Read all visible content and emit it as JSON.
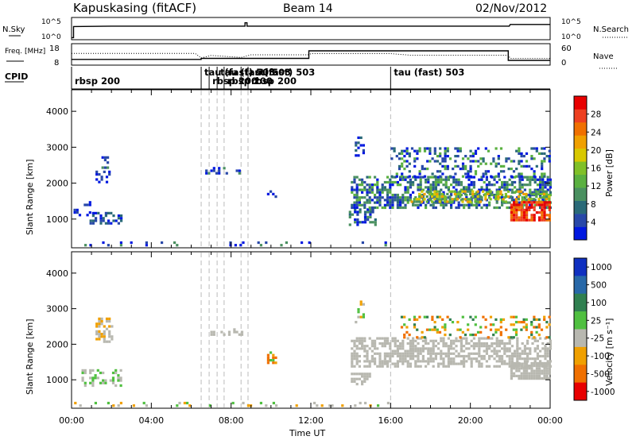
{
  "header": {
    "station": "Kapuskasing (fitACF)",
    "beam": "Beam 14",
    "date": "02/Nov/2012"
  },
  "colors": {
    "scatter_blue": "#2040c0",
    "ground_gray": "#c8c8c0",
    "mark_black": "#000000"
  },
  "chart_data": [
    {
      "type": "line",
      "name_label": "N.Sky",
      "right_label": "N.Search",
      "yticks": [
        "10^5",
        "10^0"
      ],
      "right_yticks": [
        "10^5",
        "10^0"
      ],
      "series": [
        {
          "name": "N.Sky",
          "style": "solid",
          "x": [
            0.0,
            0.1,
            0.1,
            2.0,
            6.0,
            8.7,
            8.7,
            8.8,
            8.8,
            12.0,
            16.0,
            21.95,
            22.0,
            24.0
          ],
          "y": [
            0.3,
            0.3,
            3.0,
            3.1,
            3.1,
            3.1,
            3.9,
            3.9,
            3.1,
            3.1,
            3.1,
            3.1,
            3.5,
            3.5
          ]
        }
      ],
      "ylim": [
        0,
        5
      ]
    },
    {
      "type": "line",
      "name_label": "Freq. [MHz]",
      "right_label": "Nave",
      "yticks": [
        "18",
        "8"
      ],
      "right_yticks": [
        "60",
        "0"
      ],
      "series": [
        {
          "name": "Freq.",
          "style": "solid",
          "x": [
            0,
            6.5,
            6.5,
            11.9,
            11.9,
            21.9,
            21.9,
            24
          ],
          "y": [
            10.5,
            10.5,
            11.0,
            11.0,
            14.8,
            14.8,
            10.0,
            10.0
          ]
        },
        {
          "name": "Nave",
          "style": "dotted",
          "x": [
            0,
            6.2,
            6.5,
            7.0,
            8.5,
            9.0,
            11.9,
            12.0,
            16.0,
            17.0,
            21.9,
            22.0,
            24
          ],
          "y": [
            13.5,
            13.5,
            11.2,
            12.5,
            11.5,
            12.8,
            12.8,
            13.4,
            13.4,
            12.6,
            12.6,
            11.0,
            11.0
          ]
        }
      ],
      "ylim": [
        8,
        18
      ]
    },
    {
      "type": "heatmap",
      "label": "CPID",
      "events": [
        {
          "t": 0.0,
          "label": "rbsp 200",
          "row": 1
        },
        {
          "t": 6.5,
          "label": "tau (fast) 503",
          "row": 0
        },
        {
          "t": 6.9,
          "label": "rbsp 200",
          "row": 1
        },
        {
          "t": 7.3,
          "label": "tau (fast) 503",
          "row": 0
        },
        {
          "t": 7.65,
          "label": "rbsp 200",
          "row": 1
        },
        {
          "t": 8.5,
          "label": "tau (fast) 503",
          "row": 0
        },
        {
          "t": 8.85,
          "label": "rbsp 200",
          "row": 1
        },
        {
          "t": 16.0,
          "label": "tau (fast) 503",
          "row": 0
        }
      ]
    },
    {
      "type": "heatmap",
      "quantity": "Power",
      "ylabel": "Slant Range [km]",
      "ylim": [
        200,
        4600
      ],
      "yticks": [
        1000,
        2000,
        3000,
        4000
      ],
      "colorbar_label": "Power [dB]",
      "colorbar_ticks": [
        "4",
        "8",
        "12",
        "16",
        "20",
        "24",
        "28"
      ],
      "colorbar_colors": [
        "#0018e0",
        "#2848a8",
        "#2a6a78",
        "#4a9060",
        "#5ab040",
        "#80c028",
        "#d8c800",
        "#f0a000",
        "#f07000",
        "#ee4020",
        "#e80000"
      ],
      "blobs": [
        {
          "t0": 1.2,
          "t1": 1.9,
          "r0": 2050,
          "r1": 2350,
          "density": 0.55,
          "levels": [
            0,
            1
          ]
        },
        {
          "t0": 1.5,
          "t1": 2.0,
          "r0": 2450,
          "r1": 2750,
          "density": 0.4,
          "levels": [
            0,
            1,
            3
          ]
        },
        {
          "t0": 0.9,
          "t1": 2.5,
          "r0": 850,
          "r1": 1200,
          "density": 0.45,
          "levels": [
            0,
            1,
            2
          ]
        },
        {
          "t0": 0.1,
          "t1": 1.0,
          "r0": 1100,
          "r1": 1500,
          "density": 0.2,
          "levels": [
            0,
            1
          ]
        },
        {
          "t0": 6.7,
          "t1": 8.6,
          "r0": 2250,
          "r1": 2450,
          "density": 0.45,
          "levels": [
            0,
            1,
            3
          ]
        },
        {
          "t0": 9.8,
          "t1": 10.2,
          "r0": 1600,
          "r1": 1800,
          "density": 0.55,
          "levels": [
            0,
            1
          ]
        },
        {
          "t0": 14.2,
          "t1": 14.6,
          "r0": 2700,
          "r1": 3300,
          "density": 0.35,
          "levels": [
            0,
            1,
            2
          ]
        },
        {
          "t0": 13.9,
          "t1": 15.2,
          "r0": 850,
          "r1": 1300,
          "density": 0.5,
          "levels": [
            0,
            1,
            2,
            3
          ]
        },
        {
          "t0": 14.0,
          "t1": 24.0,
          "r0": 1350,
          "r1": 2200,
          "density": 0.6,
          "levels": [
            0,
            1,
            2,
            3,
            4
          ]
        },
        {
          "t0": 17.0,
          "t1": 24.0,
          "r0": 1450,
          "r1": 1800,
          "density": 0.55,
          "levels": [
            3,
            4,
            5,
            6,
            7
          ]
        },
        {
          "t0": 22.0,
          "t1": 24.0,
          "r0": 1000,
          "r1": 1500,
          "density": 0.75,
          "levels": [
            8,
            9,
            10
          ]
        },
        {
          "t0": 16.0,
          "t1": 24.0,
          "r0": 2200,
          "r1": 3000,
          "density": 0.3,
          "levels": [
            0,
            1,
            2,
            4
          ]
        },
        {
          "t0": 0.0,
          "t1": 16.0,
          "r0": 250,
          "r1": 380,
          "density": 0.12,
          "levels": [
            0,
            1,
            3
          ]
        }
      ],
      "xlim": [
        0,
        24
      ]
    },
    {
      "type": "heatmap",
      "quantity": "Velocity",
      "ylabel": "Slant Range [km]",
      "ylim": [
        200,
        4600
      ],
      "yticks": [
        1000,
        2000,
        3000,
        4000
      ],
      "xlabel": "Time UT",
      "xticks": [
        "00:00",
        "04:00",
        "08:00",
        "12:00",
        "16:00",
        "20:00",
        "00:00"
      ],
      "colorbar_label": "Velocity [m s⁻¹]",
      "colorbar_ticks": [
        "1000",
        "500",
        "100",
        "25",
        "-25",
        "-100",
        "-500",
        "-1000"
      ],
      "colorbar_colors": [
        "#1030c0",
        "#2868a8",
        "#308050",
        "#50c040",
        "#b8b8b0",
        "#f0a000",
        "#f07000",
        "#e80000"
      ],
      "blobs": [
        {
          "t0": 1.2,
          "t1": 2.0,
          "r0": 2050,
          "r1": 2750,
          "density": 0.45,
          "levels": [
            4,
            4,
            5
          ]
        },
        {
          "t0": 0.5,
          "t1": 2.5,
          "r0": 850,
          "r1": 1300,
          "density": 0.45,
          "levels": [
            4,
            4,
            3
          ]
        },
        {
          "t0": 6.7,
          "t1": 8.6,
          "r0": 2250,
          "r1": 2450,
          "density": 0.4,
          "levels": [
            4
          ]
        },
        {
          "t0": 9.8,
          "t1": 10.2,
          "r0": 1500,
          "r1": 1800,
          "density": 0.5,
          "levels": [
            5,
            6,
            3
          ]
        },
        {
          "t0": 14.0,
          "t1": 24.0,
          "r0": 1350,
          "r1": 2200,
          "density": 0.6,
          "levels": [
            4,
            4,
            4
          ]
        },
        {
          "t0": 22.0,
          "t1": 24.0,
          "r0": 1000,
          "r1": 1500,
          "density": 0.85,
          "levels": [
            4
          ]
        },
        {
          "t0": 14.0,
          "t1": 15.0,
          "r0": 850,
          "r1": 1200,
          "density": 0.5,
          "levels": [
            4
          ]
        },
        {
          "t0": 14.2,
          "t1": 14.6,
          "r0": 2600,
          "r1": 3300,
          "density": 0.3,
          "levels": [
            4,
            5,
            3
          ]
        },
        {
          "t0": 16.5,
          "t1": 24.0,
          "r0": 2200,
          "r1": 2800,
          "density": 0.25,
          "levels": [
            5,
            6,
            3,
            2
          ]
        },
        {
          "t0": 0.0,
          "t1": 16.0,
          "r0": 250,
          "r1": 380,
          "density": 0.12,
          "levels": [
            3,
            4,
            5
          ]
        }
      ],
      "xlim": [
        0,
        24
      ]
    }
  ]
}
